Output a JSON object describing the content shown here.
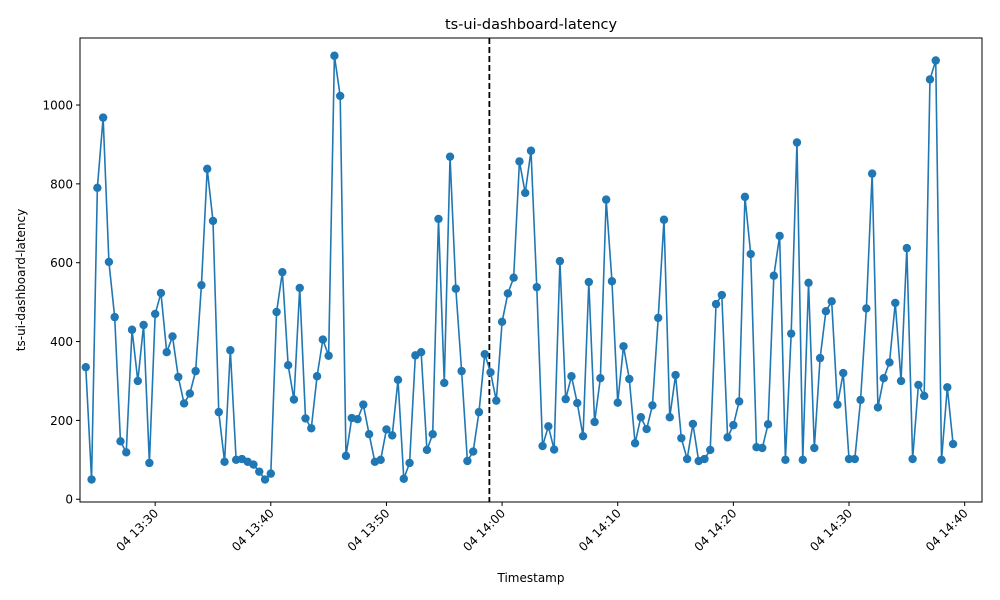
{
  "chart_data": {
    "type": "line",
    "title": "ts-ui-dashboard-latency",
    "xlabel": "Timestamp",
    "ylabel": "ts-ui-dashboard-latency",
    "line_color": "#1f77b4",
    "marker": "circle",
    "grid": false,
    "legend": "none",
    "x_tick_labels": [
      "04 13:30",
      "04 13:40",
      "04 13:50",
      "04 14:00",
      "04 14:10",
      "04 14:20",
      "04 14:30",
      "04 14:40"
    ],
    "y_ticks": [
      0,
      200,
      400,
      600,
      800,
      1000
    ],
    "x_range": [
      "04 13:23:30",
      "04 14:41:30"
    ],
    "ylim": [
      -7,
      1170
    ],
    "vertical_line": {
      "x": "04 13:58:54",
      "style": "dashed",
      "color": "#000000"
    },
    "x": [
      "04 13:24:00",
      "04 13:24:30",
      "04 13:25:00",
      "04 13:25:30",
      "04 13:26:00",
      "04 13:26:30",
      "04 13:27:00",
      "04 13:27:30",
      "04 13:28:00",
      "04 13:28:30",
      "04 13:29:00",
      "04 13:29:30",
      "04 13:30:00",
      "04 13:30:30",
      "04 13:31:00",
      "04 13:31:30",
      "04 13:32:00",
      "04 13:32:30",
      "04 13:33:00",
      "04 13:33:30",
      "04 13:34:00",
      "04 13:34:30",
      "04 13:35:00",
      "04 13:35:30",
      "04 13:36:00",
      "04 13:36:30",
      "04 13:37:00",
      "04 13:37:30",
      "04 13:38:00",
      "04 13:38:30",
      "04 13:39:00",
      "04 13:39:30",
      "04 13:40:00",
      "04 13:40:30",
      "04 13:41:00",
      "04 13:41:30",
      "04 13:42:00",
      "04 13:42:30",
      "04 13:43:00",
      "04 13:43:30",
      "04 13:44:00",
      "04 13:44:30",
      "04 13:45:00",
      "04 13:45:30",
      "04 13:46:00",
      "04 13:46:30",
      "04 13:47:00",
      "04 13:47:30",
      "04 13:48:00",
      "04 13:48:30",
      "04 13:49:00",
      "04 13:49:30",
      "04 13:50:00",
      "04 13:50:30",
      "04 13:51:00",
      "04 13:51:30",
      "04 13:52:00",
      "04 13:52:30",
      "04 13:53:00",
      "04 13:53:30",
      "04 13:54:00",
      "04 13:54:30",
      "04 13:55:00",
      "04 13:55:30",
      "04 13:56:00",
      "04 13:56:30",
      "04 13:57:00",
      "04 13:57:30",
      "04 13:58:00",
      "04 13:58:30",
      "04 13:59:00",
      "04 13:59:30",
      "04 14:00:00",
      "04 14:00:30",
      "04 14:01:00",
      "04 14:01:30",
      "04 14:02:00",
      "04 14:02:30",
      "04 14:03:00",
      "04 14:03:30",
      "04 14:04:00",
      "04 14:04:30",
      "04 14:05:00",
      "04 14:05:30",
      "04 14:06:00",
      "04 14:06:30",
      "04 14:07:00",
      "04 14:07:30",
      "04 14:08:00",
      "04 14:08:30",
      "04 14:09:00",
      "04 14:09:30",
      "04 14:10:00",
      "04 14:10:30",
      "04 14:11:00",
      "04 14:11:30",
      "04 14:12:00",
      "04 14:12:30",
      "04 14:13:00",
      "04 14:13:30",
      "04 14:14:00",
      "04 14:14:30",
      "04 14:15:00",
      "04 14:15:30",
      "04 14:16:00",
      "04 14:16:30",
      "04 14:17:00",
      "04 14:17:30",
      "04 14:18:00",
      "04 14:18:30",
      "04 14:19:00",
      "04 14:19:30",
      "04 14:20:00",
      "04 14:20:30",
      "04 14:21:00",
      "04 14:21:30",
      "04 14:22:00",
      "04 14:22:30",
      "04 14:23:00",
      "04 14:23:30",
      "04 14:24:00",
      "04 14:24:30",
      "04 14:25:00",
      "04 14:25:30",
      "04 14:26:00",
      "04 14:26:30",
      "04 14:27:00",
      "04 14:27:30",
      "04 14:28:00",
      "04 14:28:30",
      "04 14:29:00",
      "04 14:29:30",
      "04 14:30:00",
      "04 14:30:30",
      "04 14:31:00",
      "04 14:31:30",
      "04 14:32:00",
      "04 14:32:30",
      "04 14:33:00",
      "04 14:33:30",
      "04 14:34:00",
      "04 14:34:30",
      "04 14:35:00",
      "04 14:35:30",
      "04 14:36:00",
      "04 14:36:30",
      "04 14:37:00",
      "04 14:37:30",
      "04 14:38:00",
      "04 14:38:30",
      "04 14:39:00"
    ],
    "series": [
      {
        "values": [
          335,
          50,
          790,
          968,
          602,
          462,
          147,
          119,
          430,
          300,
          442,
          92,
          470,
          523,
          373,
          413,
          310,
          243,
          268,
          325,
          543,
          838,
          706,
          221,
          95,
          378,
          100,
          102,
          95,
          88,
          70,
          50,
          65,
          475,
          576,
          340,
          253,
          536,
          205,
          180,
          312,
          405,
          364,
          1125,
          1023,
          110,
          206,
          203,
          240,
          165,
          95,
          100,
          177,
          162,
          303,
          52,
          92,
          365,
          373,
          125,
          165,
          711,
          295,
          869,
          534,
          325,
          97,
          121,
          221,
          368,
          322,
          250,
          450,
          522,
          562,
          857,
          777,
          884,
          538,
          135,
          185,
          126,
          604,
          254,
          312,
          244,
          160,
          551,
          196,
          307,
          760,
          553,
          245,
          388,
          305,
          142,
          208,
          178,
          238,
          460,
          709,
          208,
          315,
          155,
          102,
          191,
          97,
          102,
          125,
          495,
          518,
          157,
          188,
          248,
          767,
          622,
          132,
          130,
          190,
          567,
          668,
          100,
          420,
          905,
          100,
          549,
          130,
          358,
          477,
          502,
          240,
          320,
          102,
          102,
          252,
          484,
          826,
          233,
          307,
          347,
          498,
          300,
          637,
          102,
          290,
          262,
          1065,
          1113,
          100,
          284,
          140
        ]
      }
    ]
  }
}
